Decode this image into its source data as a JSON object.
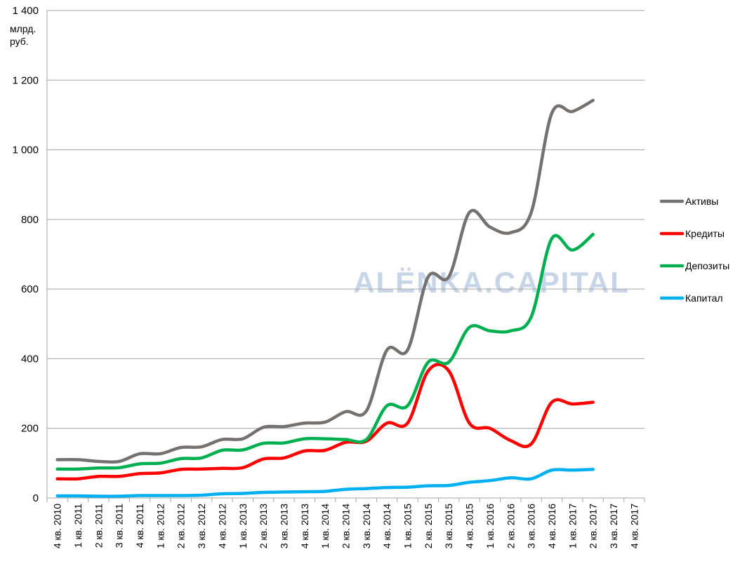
{
  "chart_data": {
    "type": "line",
    "y_label": "млрд.\nруб.",
    "watermark": "ALЁNKA.CAPITAL",
    "categories": [
      "4 кв. 2010",
      "1 кв. 2011",
      "2 кв. 2011",
      "3 кв. 2011",
      "4 кв. 2011",
      "1 кв. 2012",
      "2 кв. 2012",
      "3 кв. 2012",
      "4 кв. 2012",
      "1 кв. 2013",
      "2 кв. 2013",
      "3 кв. 2013",
      "4 кв. 2013",
      "1 кв. 2014",
      "2 кв. 2014",
      "3 кв. 2014",
      "4 кв. 2014",
      "1 кв. 2015",
      "2 кв. 2015",
      "3 кв. 2015",
      "4 кв. 2015",
      "1 кв. 2016",
      "2 кв. 2016",
      "3 кв. 2016",
      "4 кв. 2016",
      "1 кв. 2017",
      "2 кв. 2017",
      "3 кв. 2017",
      "4 кв. 2017"
    ],
    "series": [
      {
        "name": "Активы",
        "color": "#767171",
        "values": [
          110,
          110,
          105,
          105,
          127,
          127,
          145,
          147,
          168,
          170,
          203,
          205,
          215,
          218,
          248,
          250,
          425,
          425,
          635,
          635,
          820,
          778,
          762,
          820,
          1105,
          1110,
          1142,
          null,
          null
        ]
      },
      {
        "name": "Кредиты",
        "color": "#ff0000",
        "values": [
          55,
          55,
          62,
          62,
          70,
          72,
          82,
          83,
          85,
          87,
          112,
          115,
          135,
          137,
          160,
          163,
          215,
          215,
          365,
          365,
          215,
          200,
          165,
          155,
          275,
          270,
          275,
          null,
          null
        ]
      },
      {
        "name": "Депозиты",
        "color": "#00b050",
        "values": [
          83,
          83,
          86,
          87,
          98,
          100,
          113,
          115,
          137,
          138,
          157,
          158,
          170,
          170,
          168,
          168,
          265,
          265,
          390,
          390,
          490,
          480,
          480,
          520,
          745,
          712,
          757,
          null,
          null
        ]
      },
      {
        "name": "Капитал",
        "color": "#00b0f0",
        "values": [
          6,
          6,
          5,
          5,
          7,
          7,
          7,
          8,
          12,
          13,
          16,
          17,
          18,
          19,
          25,
          27,
          30,
          31,
          35,
          36,
          45,
          50,
          58,
          55,
          80,
          80,
          82,
          null,
          null
        ]
      }
    ],
    "ylim": [
      0,
      1400
    ],
    "yticks": [
      0,
      200,
      400,
      600,
      800,
      {
        "value": 1000,
        "label": "1 000"
      },
      {
        "value": 1200,
        "label": "1 200"
      },
      {
        "value": 1400,
        "label": "1 400"
      }
    ],
    "grid": true,
    "smooth": true,
    "legend": "right"
  }
}
